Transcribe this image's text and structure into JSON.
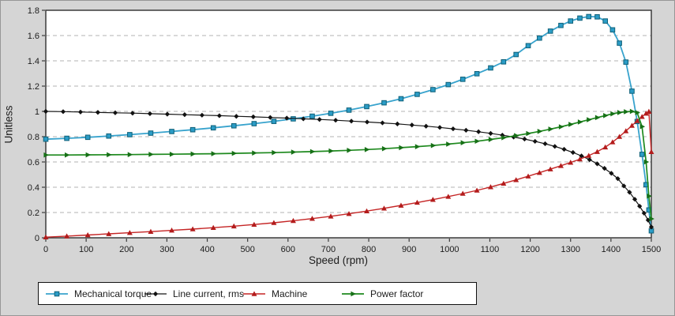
{
  "figure": {
    "background": "#d5d5d5",
    "plot_background": "#ffffff",
    "frame_color": "#3c3c3c"
  },
  "chart_data": {
    "type": "line",
    "title": "",
    "xlabel": "Speed (rpm)",
    "ylabel": "Unitless",
    "xlim": [
      0,
      1500
    ],
    "ylim": [
      0,
      1.8
    ],
    "x_ticks": [
      0,
      100,
      200,
      300,
      400,
      500,
      600,
      700,
      800,
      900,
      1000,
      1100,
      1200,
      1300,
      1400,
      1500
    ],
    "x_tick_labels": [
      "0",
      "100",
      "200",
      "300",
      "400",
      "500",
      "600",
      "700",
      "800",
      "900",
      "1000",
      "1100",
      "1200",
      "1300",
      "1400",
      "1500"
    ],
    "y_ticks": [
      0,
      0.2,
      0.4,
      0.6,
      0.8,
      1.0,
      1.2,
      1.4,
      1.6,
      1.8
    ],
    "y_tick_labels": [
      "0",
      "0.2",
      "0.4",
      "0.6",
      "0.8",
      "1",
      "1.2",
      "1.4",
      "1.6",
      "1.8"
    ],
    "grid": {
      "horizontal": true,
      "vertical": false,
      "style": "dashed",
      "color": "#b3b3b3"
    },
    "legend": {
      "position": "bottom-left",
      "background": "#ffffff",
      "border": "#111111"
    },
    "series": [
      {
        "name": "Mechanical torque",
        "color": "#38a3cd",
        "marker": "square",
        "marker_fill": "#2b9cc6",
        "marker_edge": "#0f6078",
        "line_width": 1.8,
        "points": [
          [
            0,
            0.78
          ],
          [
            52,
            0.787
          ],
          [
            104,
            0.795
          ],
          [
            156,
            0.805
          ],
          [
            208,
            0.816
          ],
          [
            260,
            0.828
          ],
          [
            312,
            0.841
          ],
          [
            364,
            0.855
          ],
          [
            415,
            0.87
          ],
          [
            466,
            0.886
          ],
          [
            516,
            0.903
          ],
          [
            565,
            0.921
          ],
          [
            613,
            0.941
          ],
          [
            660,
            0.962
          ],
          [
            706,
            0.985
          ],
          [
            751,
            1.01
          ],
          [
            795,
            1.038
          ],
          [
            838,
            1.068
          ],
          [
            880,
            1.1
          ],
          [
            920,
            1.135
          ],
          [
            959,
            1.172
          ],
          [
            997,
            1.212
          ],
          [
            1033,
            1.254
          ],
          [
            1068,
            1.298
          ],
          [
            1102,
            1.344
          ],
          [
            1134,
            1.392
          ],
          [
            1165,
            1.45
          ],
          [
            1195,
            1.52
          ],
          [
            1223,
            1.58
          ],
          [
            1250,
            1.635
          ],
          [
            1276,
            1.68
          ],
          [
            1300,
            1.715
          ],
          [
            1323,
            1.738
          ],
          [
            1345,
            1.75
          ],
          [
            1366,
            1.748
          ],
          [
            1386,
            1.715
          ],
          [
            1404,
            1.645
          ],
          [
            1421,
            1.54
          ],
          [
            1437,
            1.39
          ],
          [
            1452,
            1.16
          ],
          [
            1465,
            0.92
          ],
          [
            1477,
            0.66
          ],
          [
            1487,
            0.42
          ],
          [
            1494,
            0.22
          ],
          [
            1500,
            0.055
          ]
        ]
      },
      {
        "name": "Line current, rms",
        "color": "#161616",
        "marker": "diamond",
        "marker_fill": "#111111",
        "marker_edge": "none",
        "line_width": 1.2,
        "points": [
          [
            0,
            1.0
          ],
          [
            43,
            0.998
          ],
          [
            86,
            0.995
          ],
          [
            129,
            0.992
          ],
          [
            172,
            0.989
          ],
          [
            215,
            0.986
          ],
          [
            258,
            0.982
          ],
          [
            301,
            0.978
          ],
          [
            344,
            0.974
          ],
          [
            387,
            0.97
          ],
          [
            430,
            0.966
          ],
          [
            472,
            0.961
          ],
          [
            514,
            0.957
          ],
          [
            556,
            0.952
          ],
          [
            597,
            0.947
          ],
          [
            638,
            0.941
          ],
          [
            678,
            0.936
          ],
          [
            718,
            0.93
          ],
          [
            757,
            0.923
          ],
          [
            796,
            0.916
          ],
          [
            834,
            0.909
          ],
          [
            871,
            0.901
          ],
          [
            907,
            0.892
          ],
          [
            942,
            0.883
          ],
          [
            976,
            0.873
          ],
          [
            1009,
            0.862
          ],
          [
            1041,
            0.851
          ],
          [
            1072,
            0.839
          ],
          [
            1102,
            0.826
          ],
          [
            1131,
            0.812
          ],
          [
            1159,
            0.797
          ],
          [
            1186,
            0.781
          ],
          [
            1212,
            0.763
          ],
          [
            1237,
            0.744
          ],
          [
            1261,
            0.723
          ],
          [
            1284,
            0.7
          ],
          [
            1306,
            0.675
          ],
          [
            1327,
            0.648
          ],
          [
            1347,
            0.618
          ],
          [
            1366,
            0.585
          ],
          [
            1384,
            0.549
          ],
          [
            1401,
            0.51
          ],
          [
            1417,
            0.468
          ],
          [
            1432,
            0.41
          ],
          [
            1446,
            0.36
          ],
          [
            1459,
            0.305
          ],
          [
            1471,
            0.25
          ],
          [
            1482,
            0.195
          ],
          [
            1492,
            0.14
          ],
          [
            1500,
            0.085
          ]
        ]
      },
      {
        "name": "Machine",
        "color": "#c52525",
        "marker": "triangle-up",
        "marker_fill": "#b31c1c",
        "marker_edge": "none",
        "line_width": 1.4,
        "points": [
          [
            0,
            0.005
          ],
          [
            52,
            0.013
          ],
          [
            104,
            0.022
          ],
          [
            156,
            0.031
          ],
          [
            208,
            0.04
          ],
          [
            260,
            0.049
          ],
          [
            312,
            0.059
          ],
          [
            364,
            0.069
          ],
          [
            415,
            0.08
          ],
          [
            466,
            0.092
          ],
          [
            516,
            0.105
          ],
          [
            565,
            0.119
          ],
          [
            613,
            0.135
          ],
          [
            660,
            0.152
          ],
          [
            706,
            0.17
          ],
          [
            751,
            0.19
          ],
          [
            795,
            0.211
          ],
          [
            838,
            0.233
          ],
          [
            880,
            0.256
          ],
          [
            920,
            0.279
          ],
          [
            959,
            0.302
          ],
          [
            997,
            0.326
          ],
          [
            1033,
            0.35
          ],
          [
            1068,
            0.375
          ],
          [
            1102,
            0.402
          ],
          [
            1134,
            0.43
          ],
          [
            1165,
            0.458
          ],
          [
            1195,
            0.487
          ],
          [
            1223,
            0.515
          ],
          [
            1250,
            0.543
          ],
          [
            1276,
            0.57
          ],
          [
            1300,
            0.596
          ],
          [
            1323,
            0.622
          ],
          [
            1345,
            0.65
          ],
          [
            1366,
            0.681
          ],
          [
            1386,
            0.717
          ],
          [
            1404,
            0.757
          ],
          [
            1421,
            0.8
          ],
          [
            1437,
            0.845
          ],
          [
            1452,
            0.888
          ],
          [
            1465,
            0.925
          ],
          [
            1477,
            0.958
          ],
          [
            1487,
            0.984
          ],
          [
            1494,
            0.999
          ],
          [
            1500,
            0.68
          ]
        ]
      },
      {
        "name": "Power factor",
        "color": "#1f8a1f",
        "marker": "triangle-right",
        "marker_fill": "#167016",
        "marker_edge": "none",
        "line_width": 1.7,
        "points": [
          [
            0,
            0.655
          ],
          [
            52,
            0.655
          ],
          [
            104,
            0.656
          ],
          [
            156,
            0.657
          ],
          [
            208,
            0.658
          ],
          [
            260,
            0.66
          ],
          [
            312,
            0.661
          ],
          [
            364,
            0.663
          ],
          [
            415,
            0.665
          ],
          [
            466,
            0.668
          ],
          [
            516,
            0.671
          ],
          [
            565,
            0.674
          ],
          [
            613,
            0.678
          ],
          [
            660,
            0.682
          ],
          [
            706,
            0.687
          ],
          [
            751,
            0.692
          ],
          [
            795,
            0.698
          ],
          [
            838,
            0.705
          ],
          [
            880,
            0.713
          ],
          [
            920,
            0.721
          ],
          [
            959,
            0.73
          ],
          [
            997,
            0.741
          ],
          [
            1033,
            0.752
          ],
          [
            1068,
            0.764
          ],
          [
            1102,
            0.778
          ],
          [
            1134,
            0.792
          ],
          [
            1165,
            0.808
          ],
          [
            1195,
            0.825
          ],
          [
            1223,
            0.842
          ],
          [
            1250,
            0.86
          ],
          [
            1276,
            0.878
          ],
          [
            1300,
            0.897
          ],
          [
            1323,
            0.916
          ],
          [
            1345,
            0.934
          ],
          [
            1366,
            0.951
          ],
          [
            1386,
            0.967
          ],
          [
            1404,
            0.981
          ],
          [
            1421,
            0.991
          ],
          [
            1437,
            0.997
          ],
          [
            1452,
            1.0
          ],
          [
            1465,
            0.99
          ],
          [
            1477,
            0.88
          ],
          [
            1487,
            0.6
          ],
          [
            1494,
            0.33
          ],
          [
            1500,
            0.15
          ]
        ]
      }
    ]
  }
}
